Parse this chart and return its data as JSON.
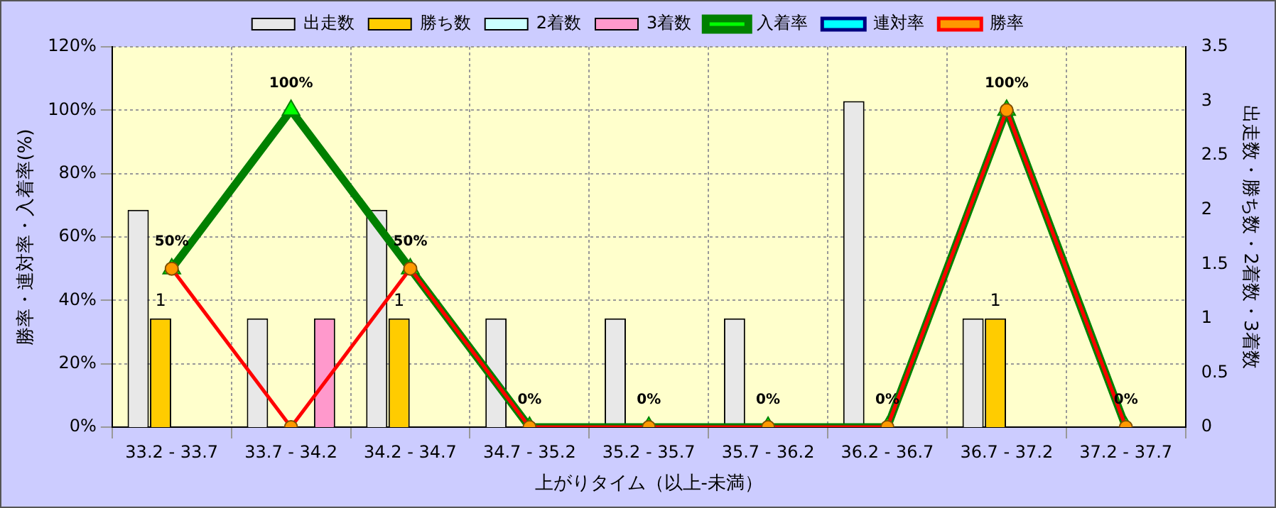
{
  "chart_data": {
    "type": "bar",
    "xlabel": "上がりタイム（以上-未満）",
    "ylabel": "勝率・連対率・入着率(%)",
    "y2label": "出走数・勝ち数・2着数・3着数",
    "categories": [
      "33.2 - 33.7",
      "33.7 - 34.2",
      "34.2 - 34.7",
      "34.7 - 35.2",
      "35.2 - 35.7",
      "35.7 - 36.2",
      "36.2 - 36.7",
      "36.7 - 37.2",
      "37.2 - 37.7"
    ],
    "series": [
      {
        "name": "出走数",
        "type": "bar",
        "axis": "y2",
        "color": "#e8e8e8",
        "values": [
          2,
          1,
          2,
          1,
          1,
          1,
          3,
          1,
          0
        ]
      },
      {
        "name": "勝ち数",
        "type": "bar",
        "axis": "y2",
        "color": "#ffcc00",
        "values": [
          1,
          0,
          1,
          0,
          0,
          0,
          0,
          1,
          0
        ],
        "value_labels": [
          "1",
          null,
          "1",
          null,
          null,
          null,
          null,
          "1",
          null
        ]
      },
      {
        "name": "2着数",
        "type": "bar",
        "axis": "y2",
        "color": "#ccffff",
        "values": [
          0,
          0,
          0,
          0,
          0,
          0,
          0,
          0,
          0
        ]
      },
      {
        "name": "3着数",
        "type": "bar",
        "axis": "y2",
        "color": "#ff99cc",
        "values": [
          0,
          1,
          0,
          0,
          0,
          0,
          0,
          0,
          0
        ]
      },
      {
        "name": "入着率",
        "type": "line",
        "color": "#008000",
        "marker": "triangle",
        "values": [
          50,
          100,
          50,
          0,
          0,
          0,
          0,
          100,
          0
        ],
        "value_labels": [
          "50%",
          "100%",
          "50%",
          "0%",
          "0%",
          "0%",
          "0%",
          "100%",
          "0%"
        ]
      },
      {
        "name": "連対率",
        "type": "line",
        "color": "#000080",
        "marker": "diamond",
        "values": [
          null,
          null,
          null,
          null,
          null,
          null,
          null,
          null,
          null
        ]
      },
      {
        "name": "勝率",
        "type": "line",
        "color": "#ff0000",
        "marker": "circle",
        "values": [
          50,
          0,
          50,
          0,
          0,
          0,
          0,
          100,
          0
        ]
      }
    ],
    "ylim": [
      0,
      120
    ],
    "yticks": [
      {
        "value": 0,
        "label": "0%"
      },
      {
        "value": 20,
        "label": "20%"
      },
      {
        "value": 40,
        "label": "40%"
      },
      {
        "value": 60,
        "label": "60%"
      },
      {
        "value": 80,
        "label": "80%"
      },
      {
        "value": 100,
        "label": "100%"
      },
      {
        "value": 120,
        "label": "120%"
      }
    ],
    "y2lim": [
      0,
      3.5
    ],
    "y2ticks": [
      0,
      0.5,
      1,
      1.5,
      2,
      2.5,
      3,
      3.5
    ],
    "grid": true,
    "legend": "top"
  }
}
